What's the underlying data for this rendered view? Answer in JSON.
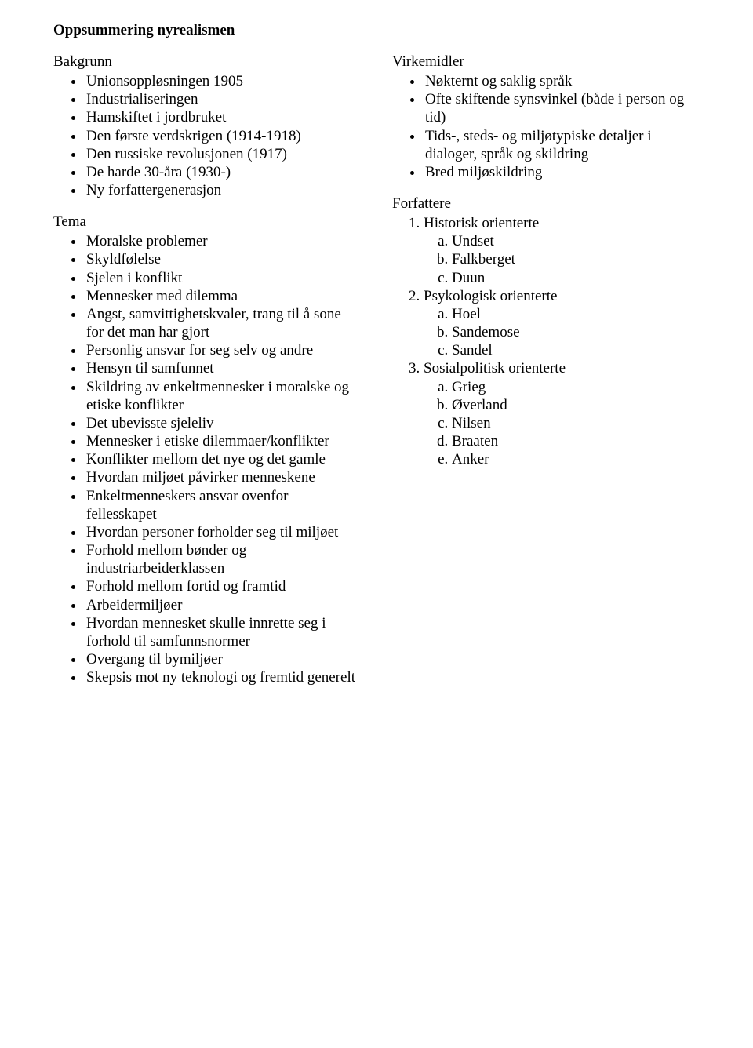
{
  "colors": {
    "background": "#ffffff",
    "text": "#000000"
  },
  "typography": {
    "family": "Times New Roman",
    "body_size_pt": 14,
    "title_weight": "bold"
  },
  "title": "Oppsummering nyrealismen",
  "left": {
    "bakgrunn": {
      "heading": "Bakgrunn",
      "items": [
        "Unionsoppløsningen 1905",
        "Industrialiseringen",
        "Hamskiftet i jordbruket",
        "Den første verdskrigen (1914-1918)",
        "Den russiske revolusjonen (1917)",
        "De harde 30-åra (1930-)",
        "Ny forfattergenerasjon"
      ]
    },
    "tema": {
      "heading": "Tema",
      "items": [
        "Moralske problemer",
        "Skyldfølelse",
        "Sjelen i konflikt",
        "Mennesker med dilemma",
        "Angst, samvittighetskvaler, trang til å sone for det man har gjort",
        "Personlig ansvar for seg selv og andre",
        "Hensyn til samfunnet",
        "Skildring av enkeltmennesker i moralske og etiske konflikter",
        "Det ubevisste sjeleliv",
        "Mennesker i etiske dilemmaer/konflikter",
        "Konflikter mellom det nye og det gamle",
        "Hvordan miljøet påvirker menneskene",
        "Enkeltmenneskers ansvar ovenfor fellesskapet",
        "Hvordan personer forholder seg til miljøet",
        "Forhold mellom bønder og industriarbeiderklassen",
        "Forhold mellom fortid og framtid",
        "Arbeidermiljøer",
        "Hvordan mennesket skulle innrette seg i forhold til samfunnsnormer",
        "Overgang til bymiljøer",
        "Skepsis mot ny teknologi og fremtid generelt"
      ]
    }
  },
  "right": {
    "virkemidler": {
      "heading": "Virkemidler",
      "items": [
        "Nøkternt og saklig språk",
        "Ofte skiftende synsvinkel (både i person og tid)",
        "Tids-, steds- og miljøtypiske detaljer i dialoger, språk og skildring",
        "Bred miljøskildring"
      ]
    },
    "forfattere": {
      "heading": "Forfattere",
      "groups": [
        {
          "label": "Historisk orienterte",
          "items": [
            "Undset",
            "Falkberget",
            "Duun"
          ]
        },
        {
          "label": "Psykologisk orienterte",
          "items": [
            "Hoel",
            "Sandemose",
            "Sandel"
          ]
        },
        {
          "label": "Sosialpolitisk orienterte",
          "items": [
            "Grieg",
            "Øverland",
            "Nilsen",
            "Braaten",
            "Anker"
          ]
        }
      ]
    }
  }
}
